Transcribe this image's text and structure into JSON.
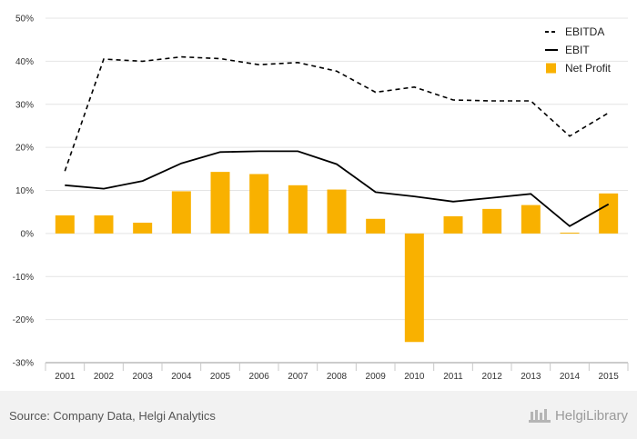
{
  "chart_data": {
    "type": "bar",
    "categories": [
      "2001",
      "2002",
      "2003",
      "2004",
      "2005",
      "2006",
      "2007",
      "2008",
      "2009",
      "2010",
      "2011",
      "2012",
      "2013",
      "2014",
      "2015"
    ],
    "ylim": [
      -30,
      50
    ],
    "yticks": [
      "50%",
      "40%",
      "30%",
      "20%",
      "10%",
      "0%",
      "-10%",
      "-20%",
      "-30%"
    ],
    "grid": true,
    "legend_position": "top-right",
    "series": [
      {
        "name": "EBITDA",
        "kind": "line-dashed",
        "color": "#000000",
        "values": [
          14.5,
          40.5,
          40.0,
          41.0,
          40.6,
          39.2,
          39.7,
          37.7,
          32.8,
          34.0,
          31.0,
          30.8,
          30.8,
          22.6,
          28.0
        ]
      },
      {
        "name": "EBIT",
        "kind": "line",
        "color": "#000000",
        "values": [
          11.2,
          10.4,
          12.2,
          16.3,
          18.9,
          19.1,
          19.1,
          16.1,
          9.6,
          8.6,
          7.4,
          8.3,
          9.2,
          1.7,
          6.8
        ]
      },
      {
        "name": "Net Profit",
        "kind": "bar",
        "color": "#f9b100",
        "values": [
          4.2,
          4.2,
          2.5,
          9.8,
          14.3,
          13.8,
          11.2,
          10.2,
          3.4,
          -25.2,
          4.0,
          5.7,
          6.6,
          0.2,
          9.3
        ]
      }
    ]
  },
  "footer": {
    "source": "Source: Company Data, Helgi Analytics",
    "brand": "HelgiLibrary"
  }
}
